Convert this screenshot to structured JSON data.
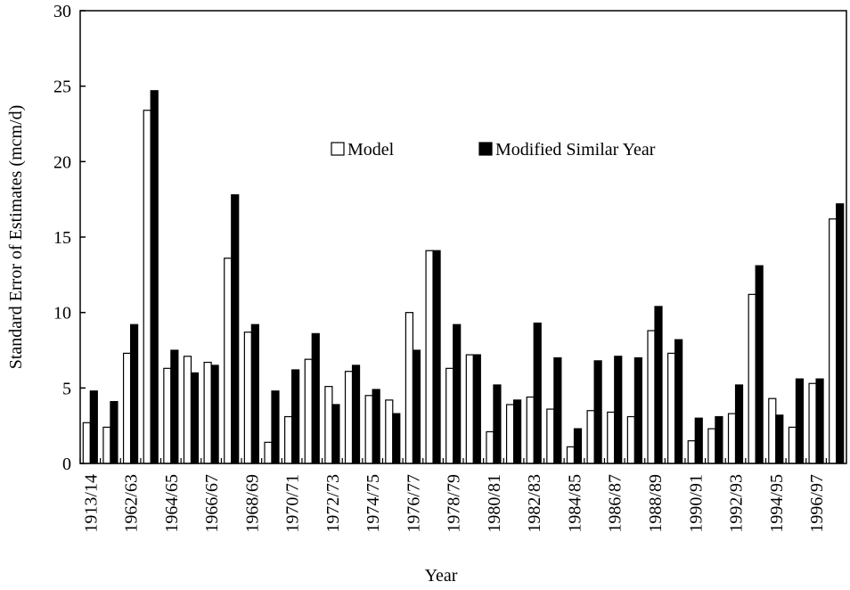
{
  "chart_data": {
    "type": "bar",
    "x_label": "Year",
    "y_label": "Standard Error of Estimates (mcm/d)",
    "categories": [
      "1913/14",
      null,
      "1962/63",
      null,
      "1964/65",
      null,
      "1966/67",
      null,
      "1968/69",
      null,
      "1970/71",
      null,
      "1972/73",
      null,
      "1974/75",
      null,
      "1976/77",
      null,
      "1978/79",
      null,
      "1980/81",
      null,
      "1982/83",
      null,
      "1984/85",
      null,
      "1986/87",
      null,
      "1988/89",
      null,
      "1990/91",
      null,
      "1992/93",
      null,
      "1994/95",
      null,
      "1996/97",
      null
    ],
    "series": [
      {
        "name": "Model",
        "color": "#ffffff",
        "values": [
          2.7,
          2.4,
          7.3,
          23.4,
          6.3,
          7.1,
          6.7,
          13.6,
          8.7,
          1.4,
          3.1,
          6.9,
          5.1,
          6.1,
          4.5,
          4.2,
          10.0,
          14.1,
          6.3,
          7.2,
          2.1,
          3.9,
          4.4,
          3.6,
          1.1,
          3.5,
          3.4,
          3.1,
          8.8,
          7.3,
          1.5,
          2.3,
          3.3,
          11.2,
          4.3,
          2.4,
          5.3,
          16.2
        ]
      },
      {
        "name": "Modified Similar Year",
        "color": "#000000",
        "values": [
          4.8,
          4.1,
          9.2,
          24.7,
          7.5,
          6.0,
          6.5,
          17.8,
          9.2,
          4.8,
          6.2,
          8.6,
          3.9,
          6.5,
          4.9,
          3.3,
          7.5,
          14.1,
          9.2,
          7.2,
          5.2,
          4.2,
          9.3,
          7.0,
          2.3,
          6.8,
          7.1,
          7.0,
          10.4,
          8.2,
          3.0,
          3.1,
          5.2,
          13.1,
          3.2,
          5.6,
          5.6,
          17.2
        ]
      }
    ],
    "ylim": [
      0,
      30
    ],
    "yticks": [
      0,
      5,
      10,
      15,
      20,
      25,
      30
    ]
  }
}
